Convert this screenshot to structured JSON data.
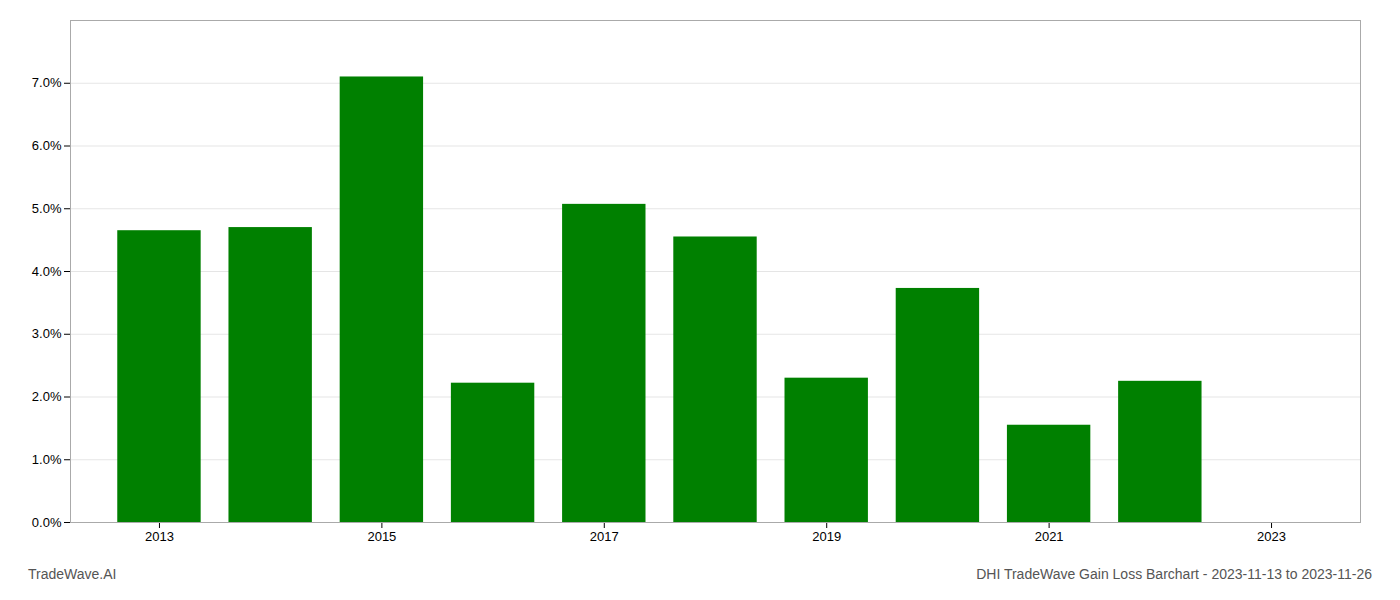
{
  "chart_data": {
    "type": "bar",
    "title": "DHI TradeWave Gain Loss Barchart - 2023-11-13 to 2023-11-26",
    "annotations": [
      "TradeWave.AI"
    ],
    "x": [
      2013,
      2014,
      2015,
      2016,
      2017,
      2018,
      2019,
      2020,
      2021,
      2022
    ],
    "values": [
      0.0465,
      0.047,
      0.071,
      0.0222,
      0.0507,
      0.0455,
      0.023,
      0.0373,
      0.0155,
      0.0225
    ],
    "color": "#008000",
    "xlim": [
      2012.2,
      2023.8
    ],
    "xticks": [
      2013,
      2015,
      2017,
      2019,
      2021,
      2023
    ],
    "ylim": [
      0.0,
      0.08
    ],
    "yticks": [
      {
        "value": 0.0,
        "label": "0.0%"
      },
      {
        "value": 0.01,
        "label": "1.0%"
      },
      {
        "value": 0.02,
        "label": "2.0%"
      },
      {
        "value": 0.03,
        "label": "3.0%"
      },
      {
        "value": 0.04,
        "label": "4.0%"
      },
      {
        "value": 0.05,
        "label": "5.0%"
      },
      {
        "value": 0.06,
        "label": "6.0%"
      },
      {
        "value": 0.07,
        "label": "7.0%"
      }
    ],
    "grid": true
  }
}
